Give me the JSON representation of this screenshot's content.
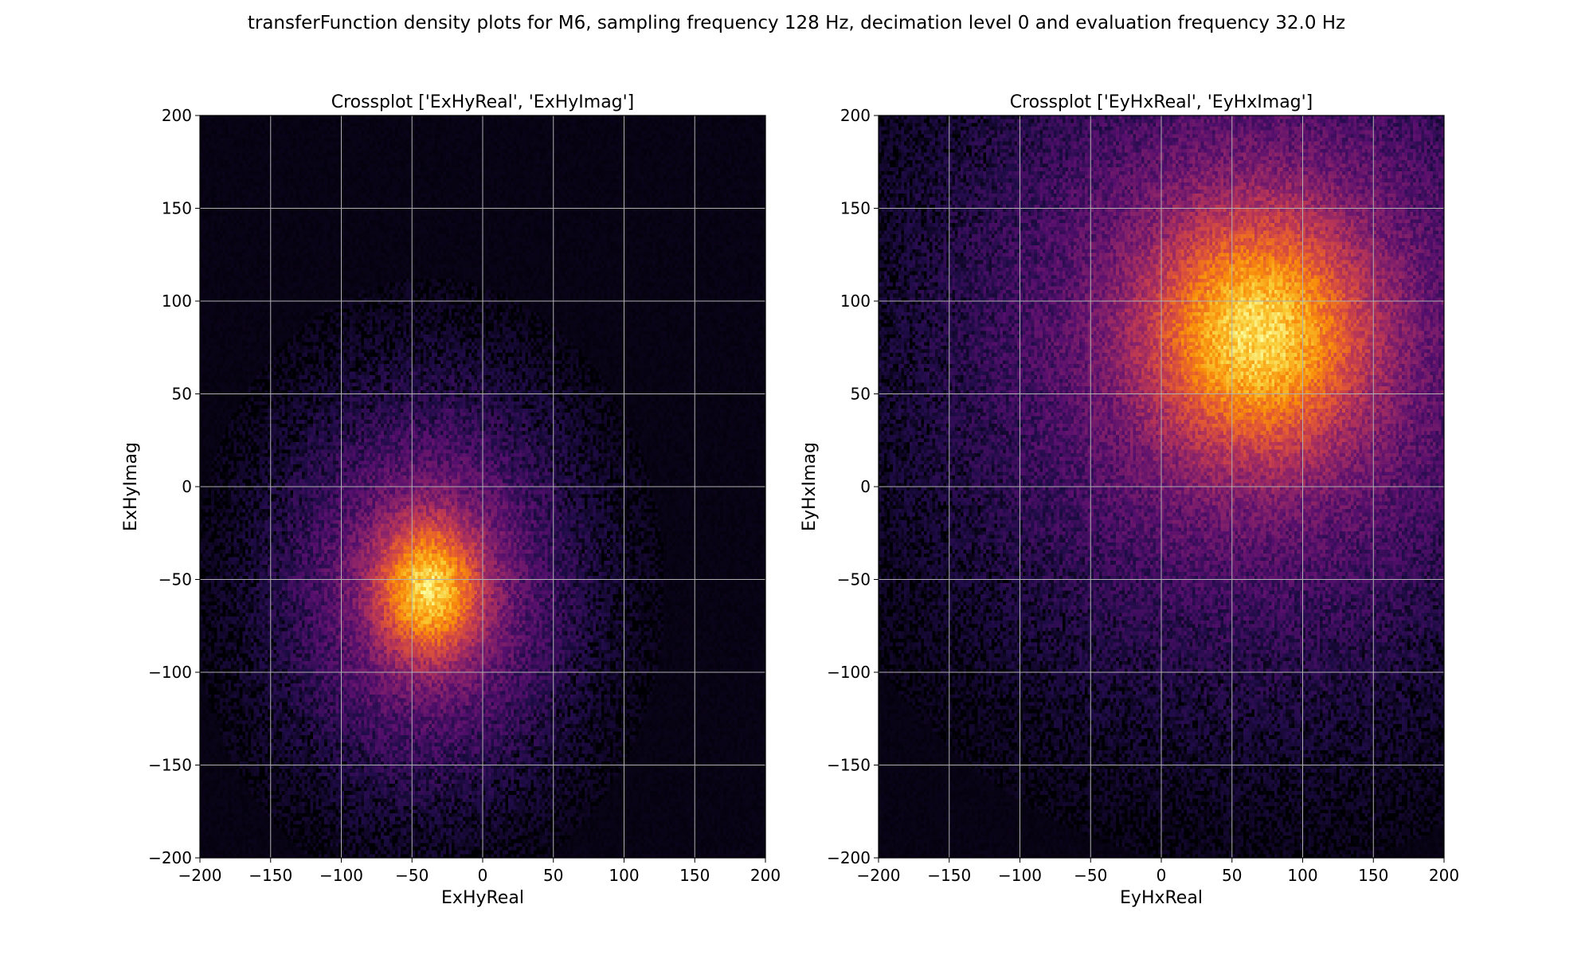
{
  "figure": {
    "suptitle": "transferFunction density plots for M6, sampling frequency 128 Hz, decimation level 0 and evaluation frequency 32.0 Hz"
  },
  "chart_data": [
    {
      "type": "heatmap",
      "title": "Crossplot ['ExHyReal', 'ExHyImag']",
      "xlabel": "ExHyReal",
      "ylabel": "ExHyImag",
      "xlim": [
        -200,
        200
      ],
      "ylim": [
        -200,
        200
      ],
      "xticks": [
        -200,
        -150,
        -100,
        -50,
        0,
        50,
        100,
        150,
        200
      ],
      "yticks": [
        -200,
        -150,
        -100,
        -50,
        0,
        50,
        100,
        150,
        200
      ],
      "xtick_labels": [
        "−200",
        "−150",
        "−100",
        "−50",
        "0",
        "50",
        "100",
        "150",
        "200"
      ],
      "ytick_labels": [
        "−200",
        "−150",
        "−100",
        "−50",
        "0",
        "50",
        "100",
        "150",
        "200"
      ],
      "grid": true,
      "colormap": "inferno",
      "density_peak": {
        "x": -38,
        "y": -55
      },
      "density_spread": {
        "x": 22,
        "y": 22
      }
    },
    {
      "type": "heatmap",
      "title": "Crossplot ['EyHxReal', 'EyHxImag']",
      "xlabel": "EyHxReal",
      "ylabel": "EyHxImag",
      "xlim": [
        -200,
        200
      ],
      "ylim": [
        -200,
        200
      ],
      "xticks": [
        -200,
        -150,
        -100,
        -50,
        0,
        50,
        100,
        150,
        200
      ],
      "yticks": [
        -200,
        -150,
        -100,
        -50,
        0,
        50,
        100,
        150,
        200
      ],
      "xtick_labels": [
        "−200",
        "−150",
        "−100",
        "−50",
        "0",
        "50",
        "100",
        "150",
        "200"
      ],
      "ytick_labels": [
        "−200",
        "−150",
        "−100",
        "−50",
        "0",
        "50",
        "100",
        "150",
        "200"
      ],
      "grid": true,
      "colormap": "inferno",
      "density_peak": {
        "x": 68,
        "y": 82
      },
      "density_spread": {
        "x": 45,
        "y": 38
      }
    }
  ]
}
